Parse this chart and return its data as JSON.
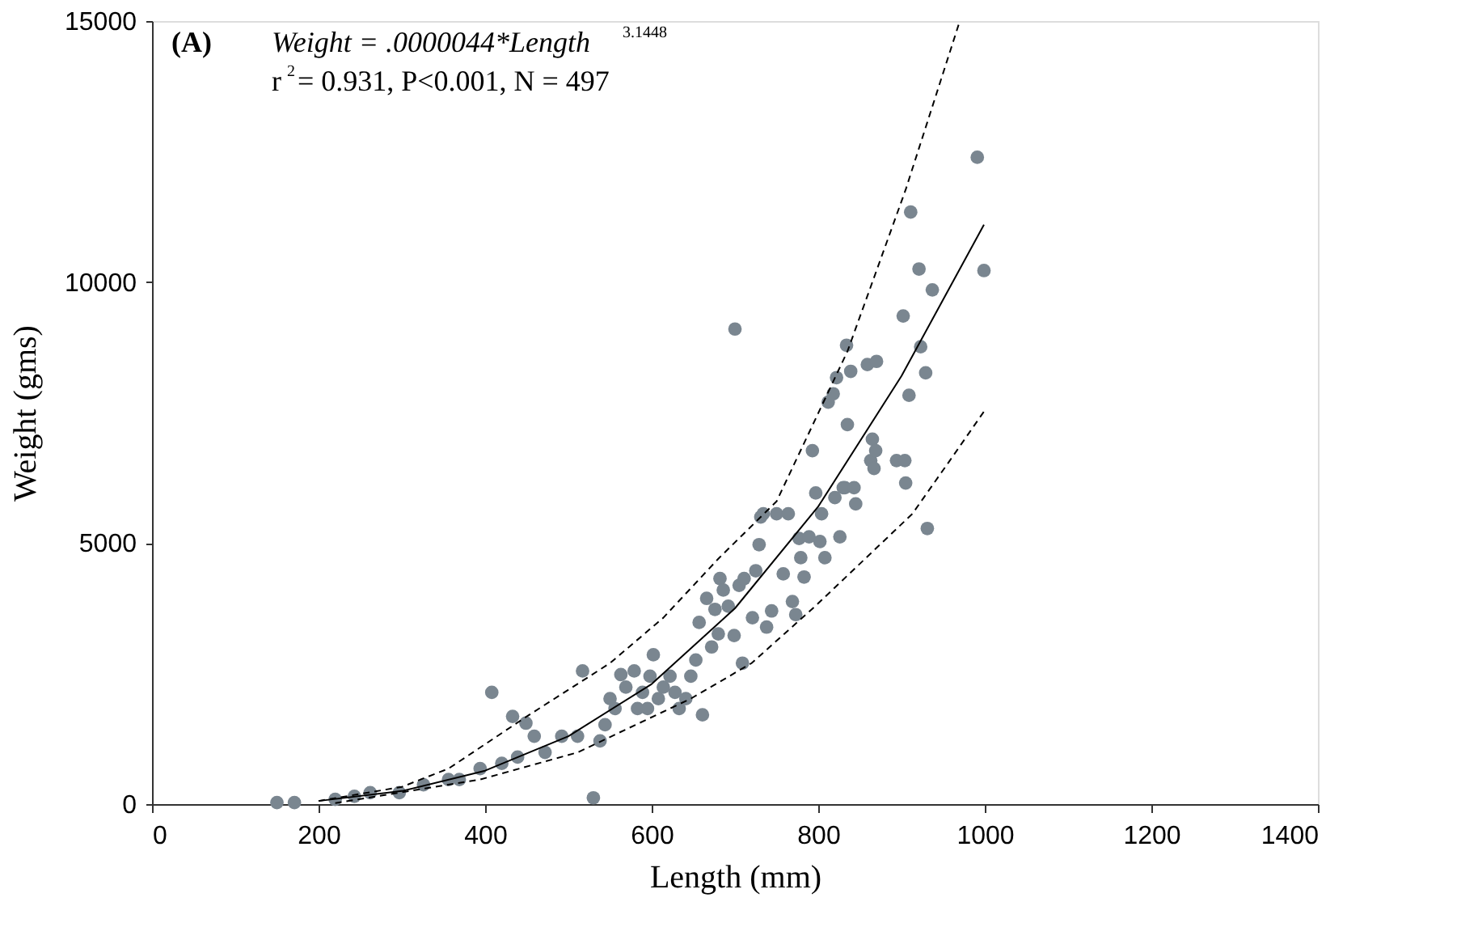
{
  "chart_data": {
    "type": "scatter",
    "xlabel": "Length (mm)",
    "ylabel": "Weight (gms)",
    "xlim": [
      0,
      1400
    ],
    "ylim": [
      0,
      15000
    ],
    "xticks": [
      0,
      200,
      400,
      600,
      800,
      1000,
      1200,
      1400
    ],
    "yticks": [
      0,
      5000,
      10000,
      15000
    ],
    "grid": false,
    "annotations": [
      "(A)",
      "Weight = .0000044*Length$^{3.1448}$",
      "r$^{2}$= 0.931, P<0.001, N = 497"
    ],
    "series": [
      {
        "color": "#7a8690",
        "marker": "circle",
        "x": [
          150,
          171,
          220,
          243,
          262,
          297,
          326,
          356,
          369,
          394,
          408,
          420,
          433,
          439,
          449,
          459,
          472,
          492,
          511,
          517,
          530,
          538,
          544,
          550,
          556,
          563,
          569,
          579,
          583,
          589,
          595,
          598,
          602,
          608,
          614,
          622,
          628,
          633,
          641,
          647,
          653,
          657,
          661,
          666,
          672,
          676,
          680,
          682,
          686,
          692,
          699,
          705,
          709,
          711,
          721,
          725,
          729,
          731,
          734,
          738,
          744,
          750,
          758,
          764,
          769,
          773,
          777,
          779,
          783,
          789,
          793,
          797,
          802,
          804,
          808,
          812,
          818,
          820,
          822,
          826,
          830,
          832,
          834,
          835,
          839,
          843,
          845,
          859,
          863,
          865,
          867,
          869,
          870,
          894,
          902,
          904,
          905,
          909,
          911,
          921,
          923,
          929,
          931,
          937,
          991,
          999,
          700
        ],
        "values": [
          30,
          30,
          90,
          150,
          220,
          220,
          370,
          470,
          470,
          680,
          2140,
          780,
          1680,
          900,
          1550,
          1300,
          990,
          1300,
          1300,
          2550,
          120,
          1210,
          1520,
          2020,
          1830,
          2480,
          2240,
          2550,
          1830,
          2140,
          1830,
          2450,
          2860,
          2020,
          2240,
          2450,
          2140,
          1830,
          2020,
          2450,
          2760,
          3480,
          1710,
          3940,
          3010,
          3730,
          3260,
          4320,
          4100,
          3790,
          3230,
          4190,
          2700,
          4320,
          3570,
          4470,
          4970,
          5500,
          5560,
          3390,
          3700,
          5560,
          4410,
          5560,
          3880,
          3630,
          5090,
          4720,
          4350,
          5120,
          6770,
          5960,
          5030,
          5560,
          4720,
          7700,
          7860,
          5870,
          8170,
          5120,
          6060,
          6060,
          8790,
          7270,
          8290,
          6060,
          5750,
          8420,
          6580,
          6990,
          6430,
          6770,
          8480,
          6580,
          9350,
          6580,
          6150,
          7830,
          11340,
          10250,
          8760,
          8260,
          5280,
          9850,
          12390,
          10220,
          9100
        ]
      },
      {
        "type": "line",
        "color": "#000000",
        "line_style": "solid",
        "marker": "none",
        "x": [
          200,
          300,
          400,
          500,
          600,
          700,
          800,
          900,
          999
        ],
        "values": [
          60,
          250,
          640,
          1300,
          2300,
          3750,
          5700,
          8200,
          11100
        ]
      },
      {
        "type": "line",
        "color": "#000000",
        "line_style": "dashed",
        "marker": "none",
        "x": [
          200,
          300,
          356,
          453,
          550,
          614,
          680,
          750,
          835,
          905,
          970
        ],
        "values": [
          60,
          330,
          680,
          1710,
          2700,
          3570,
          4700,
          5800,
          8670,
          11770,
          15000
        ]
      },
      {
        "type": "line",
        "color": "#000000",
        "line_style": "dashed",
        "marker": "none",
        "x": [
          220,
          394,
          511,
          647,
          720,
          797,
          913,
          958,
          999
        ],
        "values": [
          20,
          470,
          990,
          2020,
          2700,
          3800,
          5560,
          6580,
          7520
        ]
      }
    ]
  }
}
